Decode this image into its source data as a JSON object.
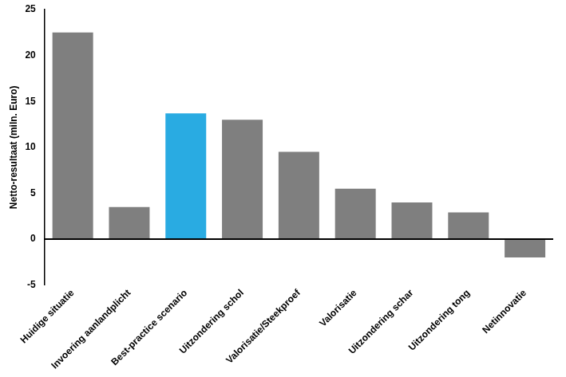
{
  "chart_data": {
    "type": "bar",
    "categories": [
      "Huidige situatie",
      "Invoering aanlandplicht",
      "Best-practice scenario",
      "Uitzondering schol",
      "Valorisatie/Steekproef",
      "Valorisatie",
      "Uitzondering schar",
      "Uitzondering tong",
      "Netinnovatie"
    ],
    "values": [
      22.5,
      3.5,
      13.7,
      13.0,
      9.5,
      5.5,
      4.0,
      2.9,
      -2.0
    ],
    "colors": [
      "#7f7f7f",
      "#7f7f7f",
      "#29ABE2",
      "#7f7f7f",
      "#7f7f7f",
      "#7f7f7f",
      "#7f7f7f",
      "#7f7f7f",
      "#7f7f7f"
    ],
    "ylabel": "Netto-resultaat (miln. Euro)",
    "ylim": [
      -5,
      25
    ],
    "yticks": [
      -5,
      0,
      5,
      10,
      15,
      20,
      25
    ],
    "grid": false
  }
}
